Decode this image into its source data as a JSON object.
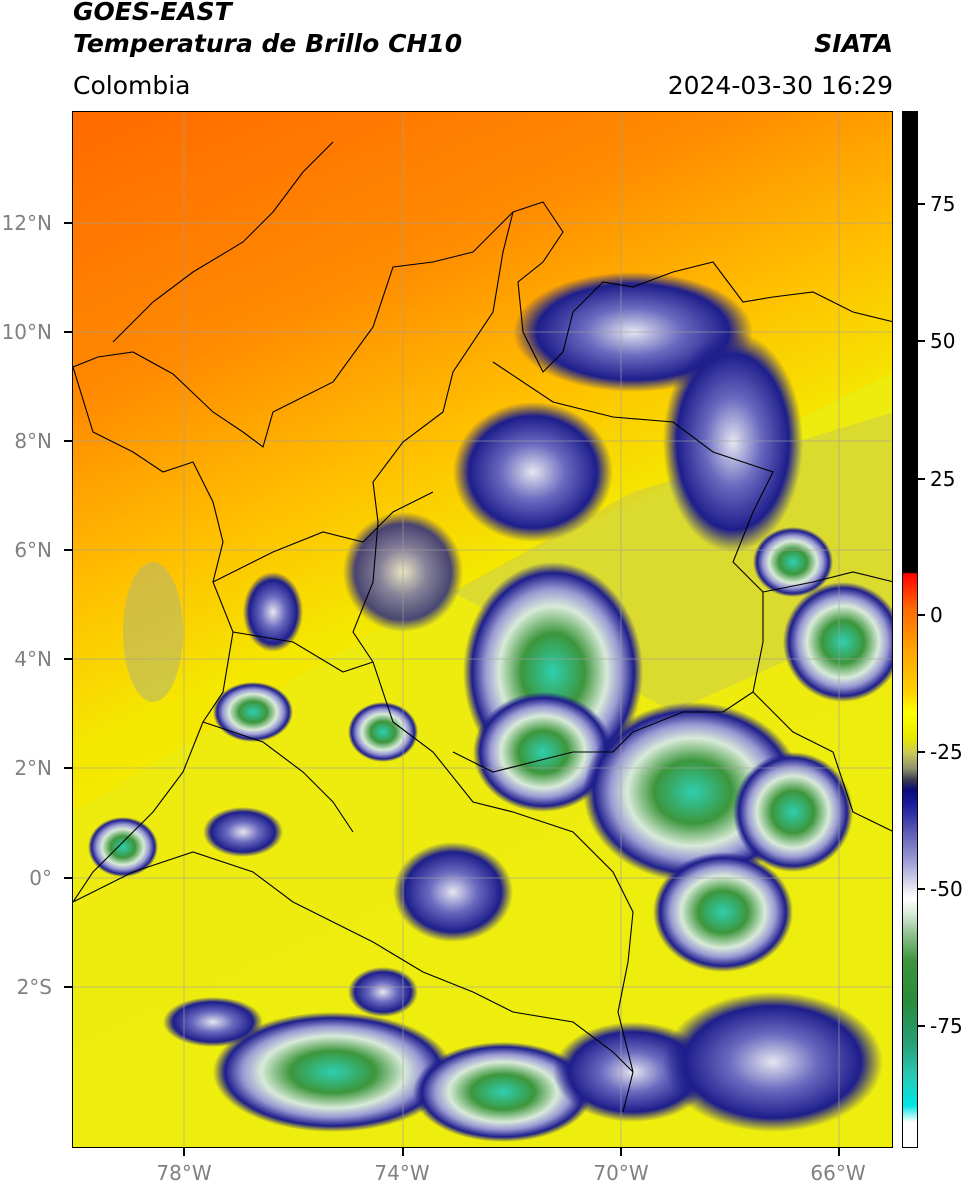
{
  "header": {
    "title_line1": "GOES-EAST",
    "title_line2": "Temperatura de Brillo CH10",
    "agency": "SIATA",
    "region": "Colombia",
    "datetime": "2024-03-30 16:29"
  },
  "axes": {
    "y_labels": [
      "12°N",
      "10°N",
      "8°N",
      "6°N",
      "4°N",
      "2°N",
      "0°",
      "2°S"
    ],
    "x_labels": [
      "78°W",
      "74°W",
      "70°W",
      "66°W"
    ]
  },
  "colorbar": {
    "labels": [
      "75",
      "50",
      "25",
      "0",
      "-25",
      "-50",
      "-75"
    ]
  },
  "colors": {
    "warm_orange": "#ff7a00",
    "land_yellow": "#f0f000",
    "cold_blue": "#1e1e8c",
    "coldest_green": "#3c963c",
    "coldest_cyan": "#30d2b4"
  }
}
